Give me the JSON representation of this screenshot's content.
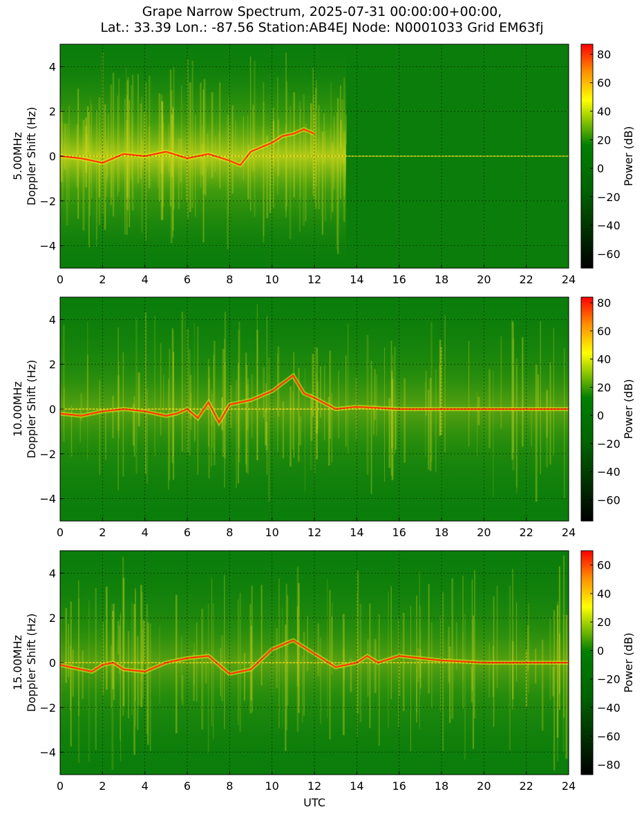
{
  "figure": {
    "title_line1": "Grape Narrow Spectrum, 2025-07-31 00:00:00+00:00,",
    "title_line2": "Lat.: 33.39 Lon.: -87.56 Station:AB4EJ Node: N0001033 Grid EM63fj",
    "xlabel": "UTC",
    "colorbar_label": "Power (dB)"
  },
  "colors": {
    "colormap": [
      "#000000",
      "#006400",
      "#008000",
      "#ffff00",
      "#ff8c00",
      "#ff0000"
    ],
    "background_green": "#0b7d0b",
    "trace_yellow": "#e6e61a",
    "trace_red": "#ff3a00"
  },
  "chart_data": [
    {
      "type": "heatmap",
      "name": "5.00MHz",
      "ylabel": "5.00MHz\nDoppler Shift (Hz)",
      "xlabel": "",
      "xlim": [
        0,
        24
      ],
      "ylim": [
        -5,
        5
      ],
      "xticks": [
        "0",
        "2",
        "4",
        "6",
        "8",
        "10",
        "12",
        "14",
        "16",
        "18",
        "20",
        "22",
        "24"
      ],
      "yticks": [
        "−4",
        "−2",
        "0",
        "2",
        "4"
      ],
      "grid": true,
      "colorbar_range": [
        -70,
        87
      ],
      "colorbar_ticks": [
        "80",
        "60",
        "40",
        "20",
        "0",
        "−20",
        "−40",
        "−60"
      ],
      "carrier_trace": {
        "x": [
          0,
          1,
          2,
          3,
          4,
          5,
          6,
          7,
          8,
          8.5,
          9,
          9.5,
          10,
          10.5,
          11,
          11.5,
          12
        ],
        "y": [
          0,
          -0.1,
          -0.3,
          0.1,
          0.0,
          0.2,
          -0.1,
          0.1,
          -0.2,
          -0.4,
          0.2,
          0.4,
          0.6,
          0.9,
          1.0,
          1.2,
          1.0
        ]
      },
      "active_period_utc": [
        0,
        13.5
      ],
      "quiet_period_utc": [
        13.5,
        24
      ]
    },
    {
      "type": "heatmap",
      "name": "10.00MHz",
      "ylabel": "10.00MHz\nDoppler Shift (Hz)",
      "xlabel": "",
      "xlim": [
        0,
        24
      ],
      "ylim": [
        -5,
        5
      ],
      "xticks": [
        "0",
        "2",
        "4",
        "6",
        "8",
        "10",
        "12",
        "14",
        "16",
        "18",
        "20",
        "22",
        "24"
      ],
      "yticks": [
        "−4",
        "−2",
        "0",
        "2",
        "4"
      ],
      "grid": true,
      "colorbar_range": [
        -75,
        84
      ],
      "colorbar_ticks": [
        "80",
        "60",
        "40",
        "20",
        "0",
        "−20",
        "−40",
        "−60"
      ],
      "carrier_trace": {
        "x": [
          0,
          1,
          2,
          3,
          4,
          5,
          5.5,
          6,
          6.5,
          7,
          7.5,
          8,
          9,
          10,
          11,
          11.5,
          12,
          13,
          14,
          16,
          18,
          20,
          22,
          24
        ],
        "y": [
          -0.2,
          -0.3,
          -0.1,
          0.0,
          -0.1,
          -0.3,
          -0.2,
          0.0,
          -0.4,
          0.3,
          -0.6,
          0.2,
          0.4,
          0.8,
          1.5,
          0.7,
          0.5,
          0.0,
          0.1,
          0.0,
          0.0,
          0.0,
          0.0,
          0.0
        ]
      },
      "active_period_utc": [
        0,
        24
      ],
      "quiet_period_utc": []
    },
    {
      "type": "heatmap",
      "name": "15.00MHz",
      "ylabel": "15.00MHz\nDoppler Shift (Hz)",
      "xlabel": "UTC",
      "xlim": [
        0,
        24
      ],
      "ylim": [
        -5,
        5
      ],
      "xticks": [
        "0",
        "2",
        "4",
        "6",
        "8",
        "10",
        "12",
        "14",
        "16",
        "18",
        "20",
        "22",
        "24"
      ],
      "yticks": [
        "−4",
        "−2",
        "0",
        "2",
        "4"
      ],
      "grid": true,
      "colorbar_range": [
        -87,
        70
      ],
      "colorbar_ticks": [
        "60",
        "40",
        "20",
        "0",
        "−20",
        "−40",
        "−60",
        "−80"
      ],
      "carrier_trace": {
        "x": [
          0,
          0.5,
          1,
          1.5,
          2,
          2.5,
          3,
          4,
          5,
          6,
          7,
          8,
          9,
          10,
          11,
          12,
          13,
          14,
          14.5,
          15,
          16,
          18,
          20,
          22,
          24
        ],
        "y": [
          -0.1,
          -0.2,
          -0.3,
          -0.4,
          -0.1,
          0.0,
          -0.3,
          -0.4,
          0.0,
          0.2,
          0.3,
          -0.5,
          -0.3,
          0.6,
          1.0,
          0.4,
          -0.2,
          0.0,
          0.3,
          0.0,
          0.3,
          0.1,
          0.0,
          0.0,
          0.0
        ]
      },
      "active_period_utc": [
        0,
        24
      ],
      "quiet_period_utc": []
    }
  ]
}
